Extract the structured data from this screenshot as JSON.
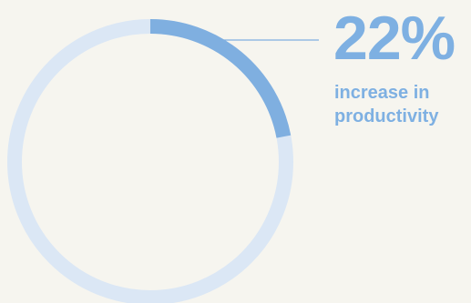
{
  "chart_data": {
    "type": "donut",
    "value_percent": 22,
    "value_label": "22%",
    "caption_lines": [
      "increase in",
      "productivity"
    ],
    "colors": {
      "filled": "#7fafe0",
      "track": "#dbe7f5",
      "text": "#7eb0e2",
      "leader": "#7fafe0",
      "background": "#f6f5ef"
    }
  }
}
